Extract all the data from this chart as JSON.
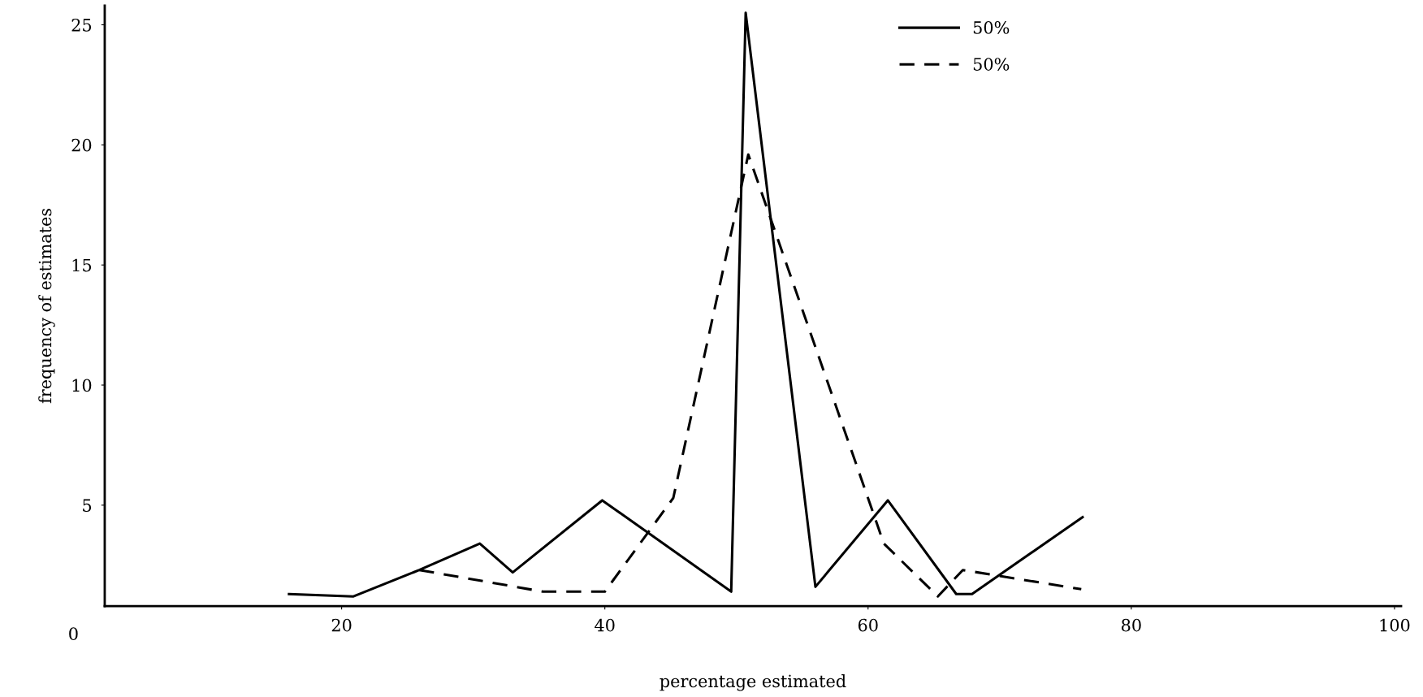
{
  "chart_data": {
    "type": "line",
    "xlabel": "percentage estimated",
    "ylabel": "frequency of estimates",
    "xlim": [
      2,
      100.5
    ],
    "ylim": [
      0.8,
      25.8
    ],
    "xticks": [
      20,
      40,
      60,
      80,
      100
    ],
    "yticks": [
      5,
      10,
      15,
      20,
      25
    ],
    "annotations": [
      "0"
    ],
    "legend": "top right",
    "grid": false,
    "marker": "none",
    "series": [
      {
        "name": "50%",
        "color": "#000000",
        "line_style": "solid",
        "x": [
          16,
          20.9,
          25.9,
          30.5,
          33,
          39.8,
          49.6,
          50.7,
          56,
          61.5,
          66.7,
          67.9,
          76.3
        ],
        "values": [
          1.3,
          1.2,
          2.3,
          3.4,
          2.2,
          5.2,
          1.4,
          25.5,
          1.6,
          5.2,
          1.3,
          1.3,
          4.5
        ]
      },
      {
        "name": "50%",
        "color": "#000000",
        "line_style": "dashed",
        "x": [
          25.9,
          35.3,
          40,
          45.2,
          50.9,
          61.2,
          65.3,
          67.2,
          76.2
        ],
        "values": [
          2.3,
          1.4,
          1.4,
          5.3,
          19.6,
          3.4,
          1.2,
          2.3,
          1.5
        ]
      }
    ]
  }
}
